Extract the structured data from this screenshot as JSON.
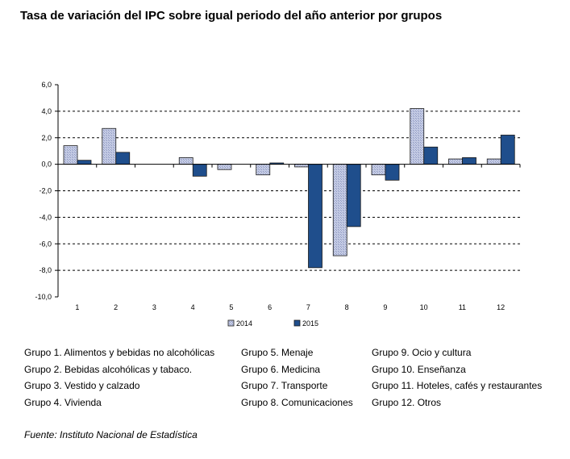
{
  "chart_data": {
    "type": "bar",
    "title": "Tasa de variación del IPC sobre igual periodo del año anterior por grupos",
    "categories": [
      "1",
      "2",
      "3",
      "4",
      "5",
      "6",
      "7",
      "8",
      "9",
      "10",
      "11",
      "12"
    ],
    "series": [
      {
        "name": "2014",
        "values": [
          1.4,
          2.7,
          0.0,
          0.5,
          -0.4,
          -0.8,
          -0.2,
          -6.9,
          -0.8,
          4.2,
          0.4,
          0.4
        ],
        "color": "#b8c0dc"
      },
      {
        "name": "2015",
        "values": [
          0.3,
          0.9,
          0.0,
          -0.9,
          0.0,
          0.1,
          -7.8,
          -4.7,
          -1.2,
          1.3,
          0.5,
          2.2
        ],
        "color": "#1f4e8c"
      }
    ],
    "ylim": [
      -10.0,
      6.0
    ],
    "yticks": [
      "6,0",
      "4,0",
      "2,0",
      "0,0",
      "-2,0",
      "-4,0",
      "-6,0",
      "-8,0",
      "-10,0"
    ],
    "grid": true,
    "legend_position": "bottom"
  },
  "groups_legend": {
    "col1": [
      "Grupo 1. Alimentos y bebidas no alcohólicas",
      "Grupo 2. Bebidas alcohólicas y  tabaco.",
      "Grupo 3. Vestido y calzado",
      "Grupo 4. Vivienda"
    ],
    "col2": [
      "Grupo 5. Menaje",
      "Grupo 6. Medicina",
      "Grupo 7. Transporte",
      "Grupo 8. Comunicaciones"
    ],
    "col3": [
      "Grupo 9. Ocio y cultura",
      "Grupo 10. Enseñanza",
      "Grupo 11. Hoteles, cafés y restaurantes",
      "Grupo 12. Otros"
    ]
  },
  "source": "Fuente: Instituto Nacional de Estadística"
}
